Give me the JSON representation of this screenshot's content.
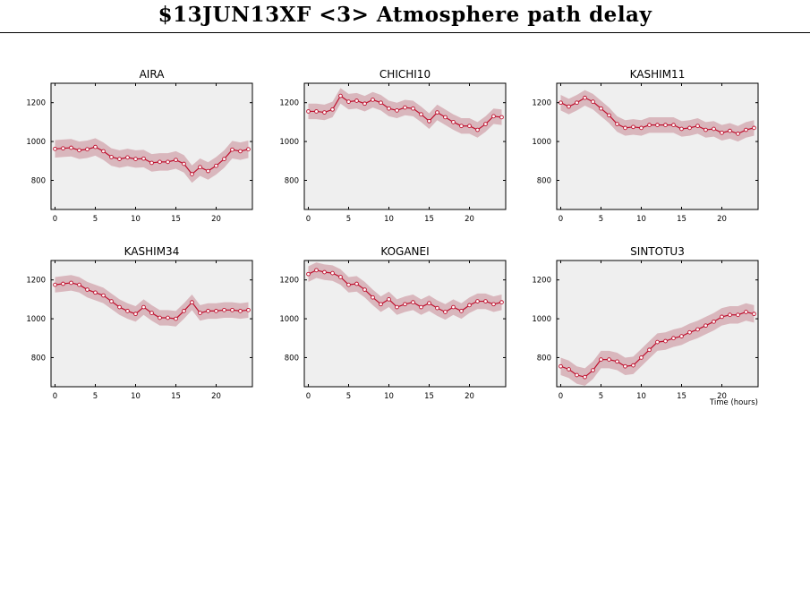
{
  "page": {
    "title": "$13JUN13XF <3>  Atmosphere path delay"
  },
  "colors": {
    "plot_background": "#efefef",
    "band": "#d9b7bd",
    "line": "#c0102e"
  },
  "shared_axes": {
    "xlim": [
      -0.5,
      24.5
    ],
    "ylim": [
      650,
      1300
    ],
    "x_ticks": [
      0,
      5,
      10,
      15,
      20
    ],
    "y_ticks": [
      800,
      1000,
      1200
    ],
    "xlabel": "Time (hours)"
  },
  "chart_data": [
    {
      "type": "line",
      "title": "AIRA",
      "x": [
        0,
        1,
        2,
        3,
        4,
        5,
        6,
        7,
        8,
        9,
        10,
        11,
        12,
        13,
        14,
        15,
        16,
        17,
        18,
        19,
        20,
        21,
        22,
        23,
        24
      ],
      "values": [
        962,
        965,
        968,
        955,
        960,
        972,
        950,
        920,
        910,
        918,
        910,
        912,
        890,
        895,
        895,
        905,
        885,
        832,
        868,
        848,
        875,
        910,
        958,
        950,
        960
      ],
      "band_halfwidth": 45
    },
    {
      "type": "line",
      "title": "CHICHI10",
      "x": [
        0,
        1,
        2,
        3,
        4,
        5,
        6,
        7,
        8,
        9,
        10,
        11,
        12,
        13,
        14,
        15,
        16,
        17,
        18,
        19,
        20,
        21,
        22,
        23,
        24
      ],
      "values": [
        1155,
        1155,
        1150,
        1165,
        1235,
        1205,
        1210,
        1195,
        1215,
        1200,
        1170,
        1160,
        1175,
        1170,
        1140,
        1105,
        1150,
        1125,
        1100,
        1080,
        1080,
        1060,
        1090,
        1130,
        1125
      ],
      "band_halfwidth": 40
    },
    {
      "type": "line",
      "title": "KASHIM11",
      "x": [
        0,
        1,
        2,
        3,
        4,
        5,
        6,
        7,
        8,
        9,
        10,
        11,
        12,
        13,
        14,
        15,
        16,
        17,
        18,
        19,
        20,
        21,
        22,
        23,
        24
      ],
      "values": [
        1200,
        1180,
        1200,
        1225,
        1205,
        1170,
        1135,
        1090,
        1070,
        1075,
        1070,
        1085,
        1085,
        1085,
        1085,
        1065,
        1070,
        1080,
        1060,
        1065,
        1045,
        1055,
        1040,
        1060,
        1070
      ],
      "band_halfwidth": 40
    },
    {
      "type": "line",
      "title": "KASHIM34",
      "x": [
        0,
        1,
        2,
        3,
        4,
        5,
        6,
        7,
        8,
        9,
        10,
        11,
        12,
        13,
        14,
        15,
        16,
        17,
        18,
        19,
        20,
        21,
        22,
        23,
        24
      ],
      "values": [
        1175,
        1180,
        1185,
        1175,
        1150,
        1135,
        1120,
        1090,
        1060,
        1040,
        1025,
        1060,
        1030,
        1005,
        1005,
        1000,
        1040,
        1085,
        1030,
        1040,
        1040,
        1045,
        1045,
        1040,
        1045
      ],
      "band_halfwidth": 40
    },
    {
      "type": "line",
      "title": "KOGANEI",
      "x": [
        0,
        1,
        2,
        3,
        4,
        5,
        6,
        7,
        8,
        9,
        10,
        11,
        12,
        13,
        14,
        15,
        16,
        17,
        18,
        19,
        20,
        21,
        22,
        23,
        24
      ],
      "values": [
        1230,
        1250,
        1240,
        1235,
        1215,
        1175,
        1180,
        1150,
        1110,
        1075,
        1100,
        1060,
        1075,
        1085,
        1060,
        1080,
        1055,
        1035,
        1060,
        1040,
        1070,
        1090,
        1090,
        1075,
        1085
      ],
      "band_halfwidth": 40
    },
    {
      "type": "line",
      "title": "SINTOTU3",
      "x": [
        0,
        1,
        2,
        3,
        4,
        5,
        6,
        7,
        8,
        9,
        10,
        11,
        12,
        13,
        14,
        15,
        16,
        17,
        18,
        19,
        20,
        21,
        22,
        23,
        24
      ],
      "values": [
        755,
        740,
        710,
        700,
        735,
        790,
        790,
        780,
        755,
        760,
        800,
        840,
        880,
        885,
        900,
        910,
        930,
        945,
        965,
        985,
        1010,
        1020,
        1020,
        1035,
        1025
      ],
      "band_halfwidth": 45
    }
  ]
}
